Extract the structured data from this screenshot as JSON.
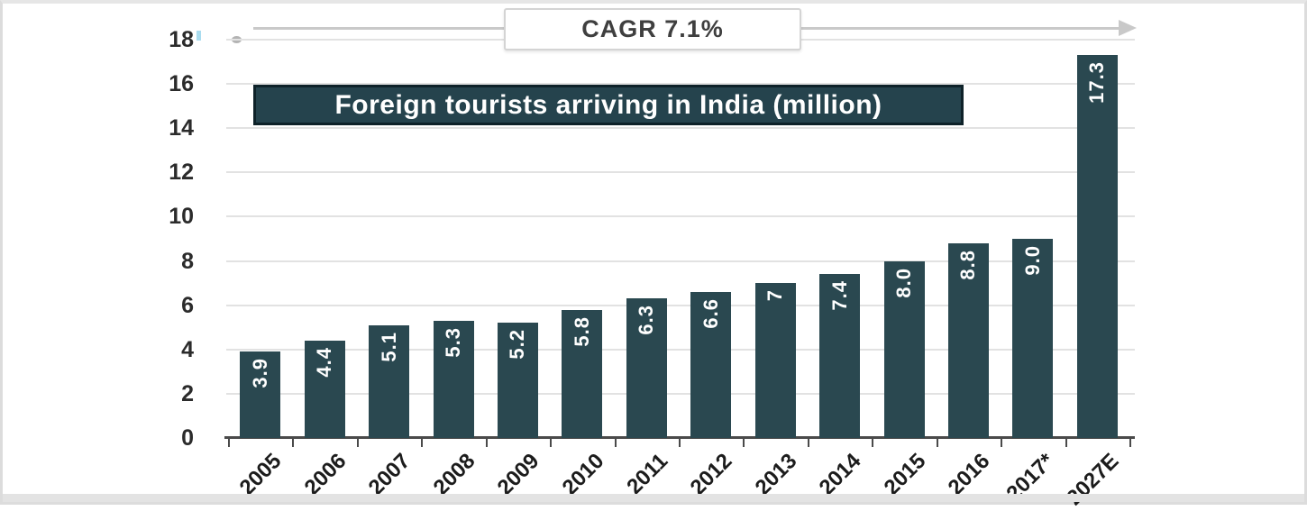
{
  "title": {
    "text": "Foreign tourists arriving in India (million)",
    "bg": "#25434d",
    "border": "#0e2229",
    "text_color": "#ffffff"
  },
  "cagr": {
    "label": "CAGR 7.1%"
  },
  "chart_data": {
    "type": "bar",
    "title": "Foreign tourists arriving in India (million)",
    "annotation": "CAGR 7.1%",
    "categories": [
      "2005",
      "2006",
      "2007",
      "2008",
      "2009",
      "2010",
      "2011",
      "2012",
      "2013",
      "2014",
      "2015",
      "2016",
      "2017*",
      "2027E"
    ],
    "values": [
      3.9,
      4.4,
      5.1,
      5.3,
      5.2,
      5.8,
      6.3,
      6.6,
      7,
      7.4,
      8.0,
      8.8,
      9.0,
      17.3
    ],
    "value_labels": [
      "3.9",
      "4.4",
      "5.1",
      "5.3",
      "5.2",
      "5.8",
      "6.3",
      "6.6",
      "7",
      "7.4",
      "8.0",
      "8.8",
      "9.0",
      "17.3"
    ],
    "xlabel": "",
    "ylabel": "",
    "ylim": [
      0,
      18
    ],
    "yticks": [
      0,
      2,
      4,
      6,
      8,
      10,
      12,
      14,
      16,
      18
    ],
    "grid": true,
    "legend": "none",
    "bar_color": "#2a4850",
    "bar_label_color": "#ffffff",
    "axis_text_color": "#2b2b2b",
    "gridline_color": "#e2e2e2",
    "arrow_color": "#c9c9c9"
  }
}
